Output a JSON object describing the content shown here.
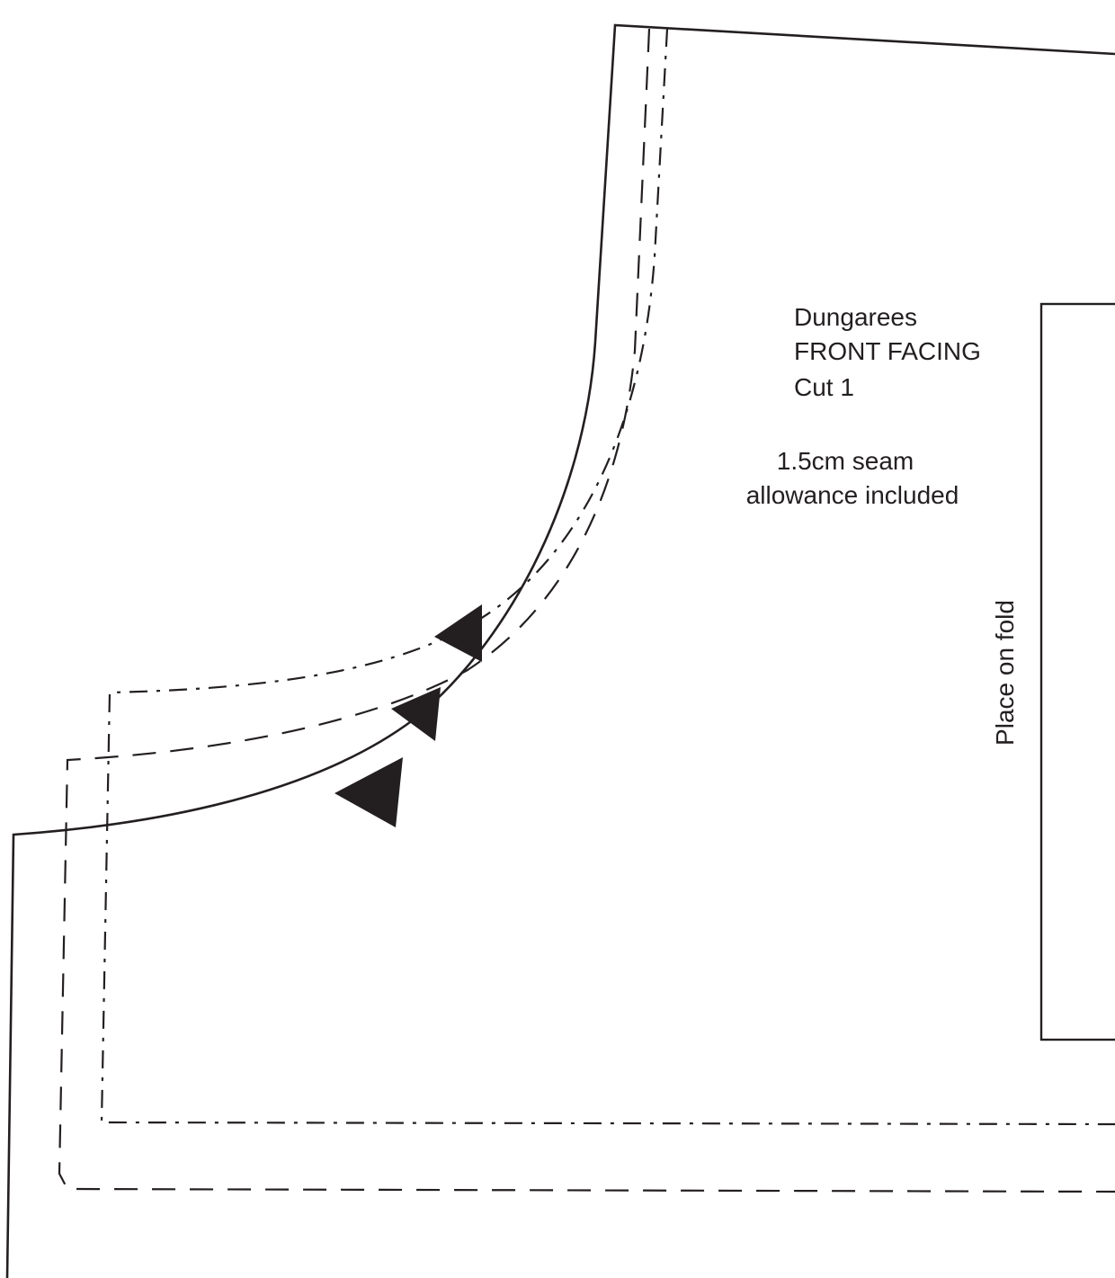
{
  "pattern_piece": {
    "title_lines": [
      "Dungarees",
      "FRONT FACING",
      "Cut 1"
    ],
    "seam_note_lines": [
      "1.5cm seam",
      "allowance included"
    ],
    "fold_label": "Place on fold",
    "notch_count": 3,
    "colors": {
      "ink": "#231f20",
      "paper": "#ffffff"
    }
  }
}
